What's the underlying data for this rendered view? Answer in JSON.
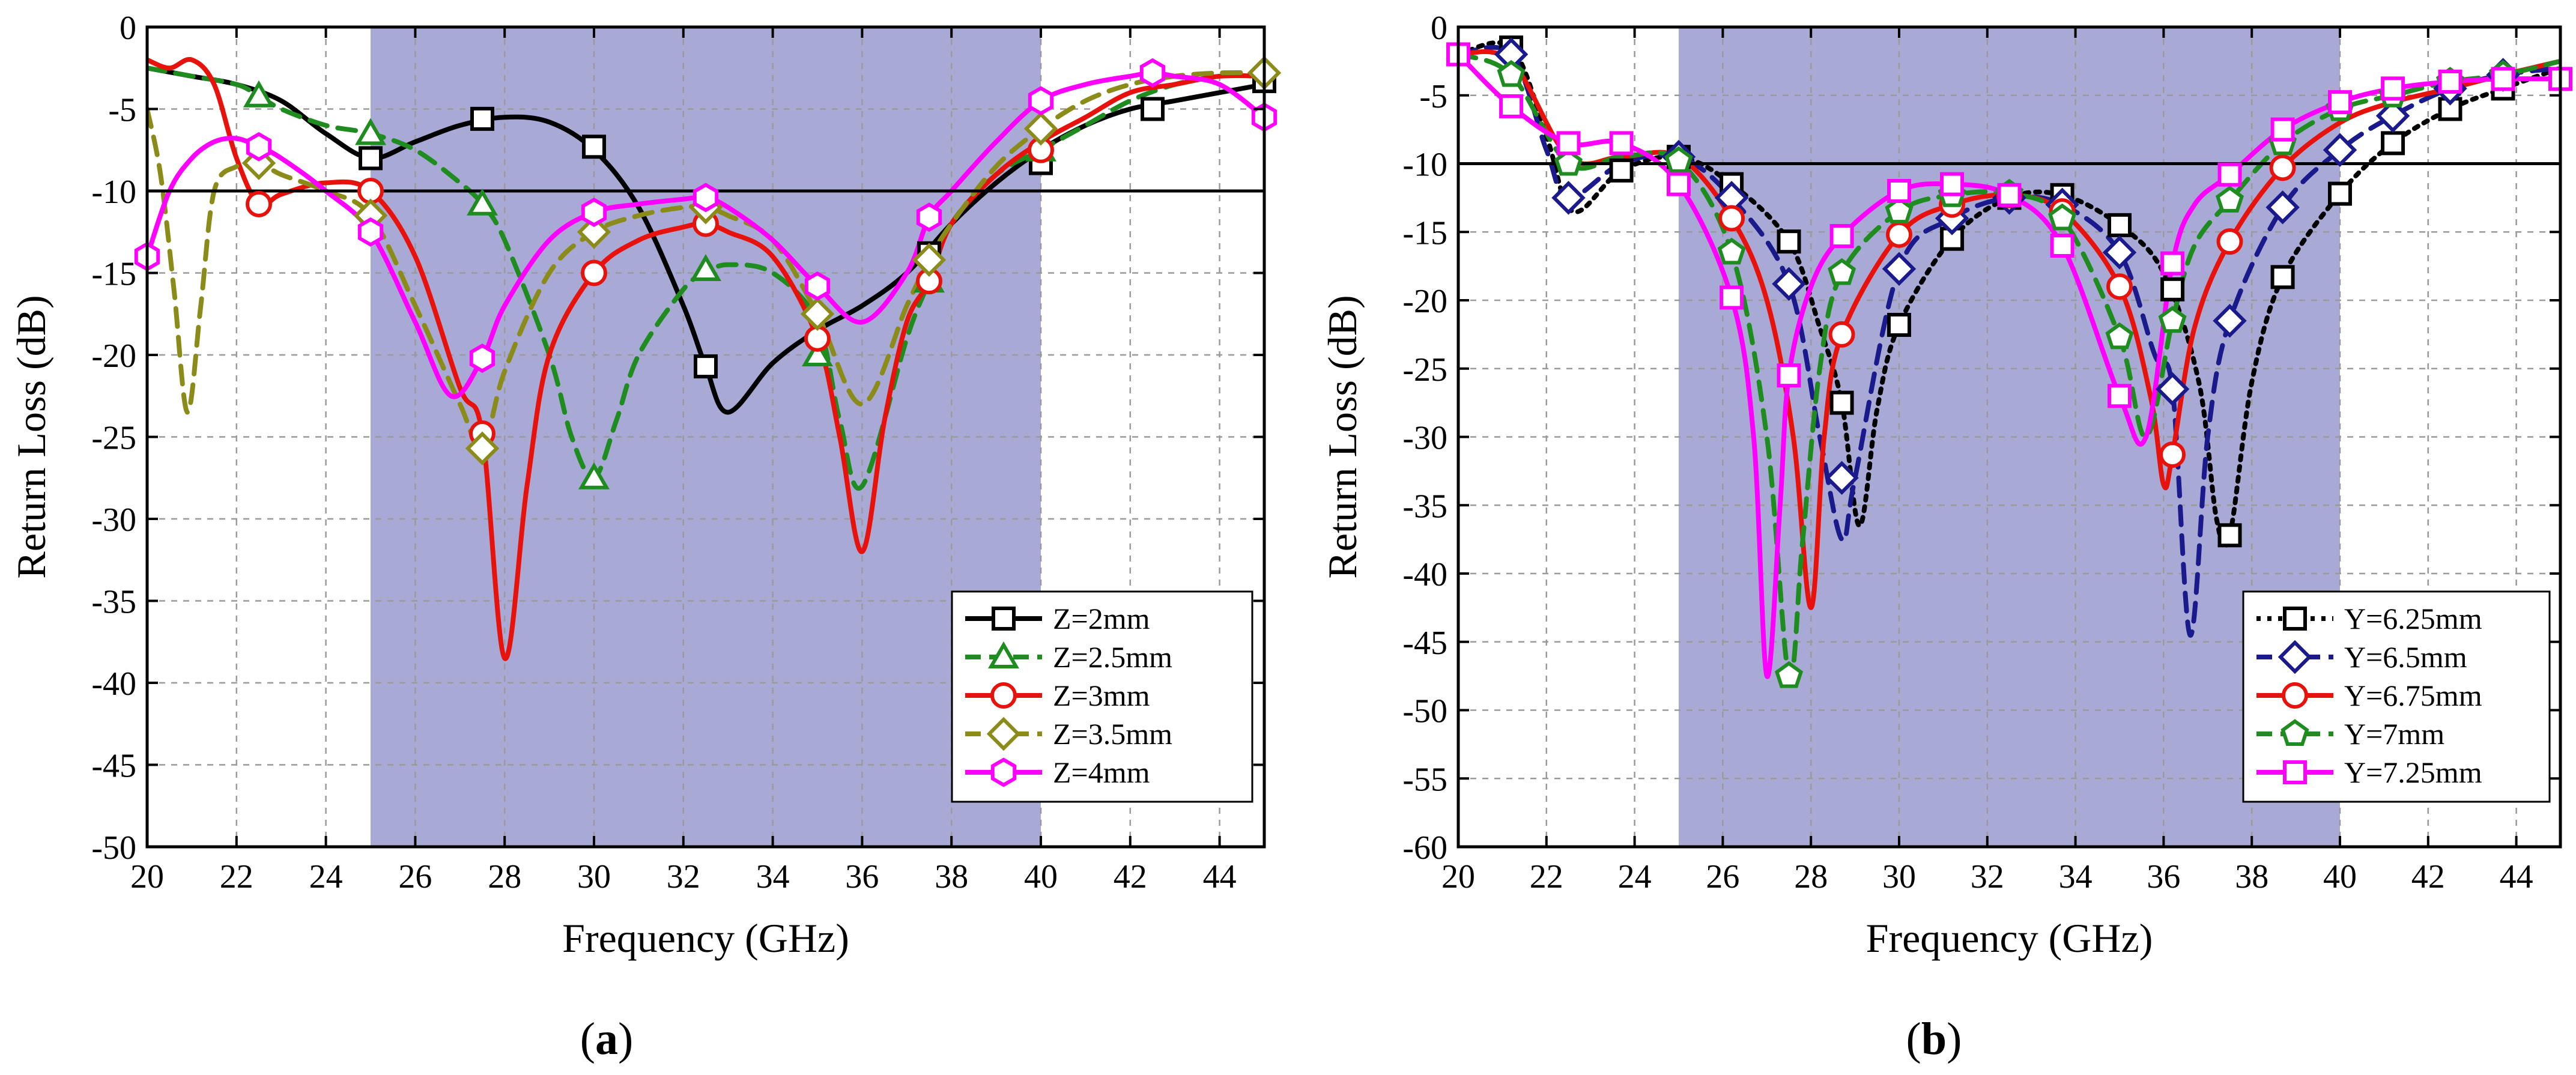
{
  "chart_data": [
    {
      "panel": "(a)",
      "panel_letter": "a",
      "type": "line",
      "xlabel": "Frequency (GHz)",
      "ylabel": "Return Loss (dB)",
      "xlim": [
        20,
        45
      ],
      "ylim": [
        -50,
        0
      ],
      "xticks": [
        20,
        22,
        24,
        26,
        28,
        30,
        32,
        34,
        36,
        38,
        40,
        42,
        44
      ],
      "yticks": [
        0,
        -5,
        -10,
        -15,
        -20,
        -25,
        -30,
        -35,
        -40,
        -45,
        -50
      ],
      "grid": true,
      "legend_position": "bottom-right",
      "shaded_band": {
        "x": [
          25,
          40
        ],
        "color": "#a9a9d6"
      },
      "reference_line": {
        "y": -10
      },
      "series": [
        {
          "name": "Z=2mm",
          "color": "#000000",
          "dash": "solid",
          "marker": "square",
          "x": [
            20,
            21,
            22,
            23,
            24,
            25,
            26,
            27,
            28,
            29,
            30,
            31,
            32,
            32.5,
            33,
            34,
            35,
            36,
            37,
            38,
            39,
            40,
            41,
            42,
            43,
            44,
            45
          ],
          "y": [
            -2.5,
            -3,
            -3.5,
            -4.5,
            -6.5,
            -8,
            -7,
            -6,
            -5.5,
            -5.8,
            -7.5,
            -11,
            -17,
            -20.7,
            -23.5,
            -20.5,
            -18.5,
            -17,
            -15,
            -12,
            -9.5,
            -7.5,
            -6,
            -5,
            -4.5,
            -4,
            -3.5
          ],
          "marker_x": [
            25,
            27.5,
            30,
            32.5,
            37.5,
            40,
            42.5,
            45
          ],
          "marker_y": [
            -8,
            -5.6,
            -7.3,
            -20.7,
            -13.8,
            -8.3,
            -5,
            -3.3
          ]
        },
        {
          "name": "Z=2.5mm",
          "color": "#1e8c1e",
          "dash": "dashed",
          "marker": "triangle",
          "x": [
            20,
            21,
            22,
            22.5,
            23,
            24,
            25,
            26,
            27,
            27.5,
            28,
            29,
            29.5,
            30,
            30.5,
            31,
            32,
            32.5,
            33,
            34,
            35,
            35.5,
            36,
            37,
            37.5,
            38,
            39,
            40,
            41,
            42,
            43,
            44,
            45
          ],
          "y": [
            -2.5,
            -3,
            -3.5,
            -4.2,
            -5,
            -6,
            -6.5,
            -7.5,
            -9.5,
            -10.8,
            -13,
            -20,
            -25,
            -27.5,
            -24,
            -20,
            -16,
            -15,
            -14.5,
            -15,
            -18,
            -24,
            -28,
            -19,
            -15.5,
            -12,
            -9,
            -7.5,
            -6,
            -4.5,
            -3.5,
            -3,
            -2.8
          ],
          "marker_x": [
            22.5,
            25,
            27.5,
            30,
            32.5,
            35,
            37.5,
            40
          ],
          "marker_y": [
            -4.2,
            -6.5,
            -10.8,
            -27.5,
            -14.8,
            -20,
            -15.5,
            -7.5
          ]
        },
        {
          "name": "Z=3mm",
          "color": "#e8120c",
          "dash": "solid",
          "marker": "circle",
          "x": [
            20,
            20.5,
            21,
            21.5,
            22,
            22.5,
            23,
            24,
            25,
            26,
            27,
            27.5,
            28,
            28.5,
            29,
            30,
            31,
            32,
            32.5,
            33,
            34,
            35,
            35.5,
            36,
            36.5,
            37,
            37.5,
            38,
            39,
            40,
            41,
            42,
            43,
            44,
            45
          ],
          "y": [
            -2,
            -2.5,
            -2,
            -3.5,
            -8,
            -10.8,
            -10.2,
            -9.5,
            -10,
            -14,
            -22,
            -24.8,
            -38.5,
            -28,
            -20,
            -15,
            -13,
            -12.2,
            -12,
            -12.5,
            -14,
            -19,
            -25,
            -32,
            -24,
            -18,
            -15.5,
            -12,
            -9,
            -7,
            -5.5,
            -4,
            -3.5,
            -3,
            -3
          ],
          "marker_x": [
            22.5,
            25,
            27.5,
            30,
            32.5,
            35,
            37.5,
            40
          ],
          "marker_y": [
            -10.8,
            -10,
            -24.8,
            -15,
            -12,
            -19,
            -15.5,
            -7.5
          ]
        },
        {
          "name": "Z=3.5mm",
          "color": "#8b8b1a",
          "dash": "dashed",
          "marker": "diamond",
          "x": [
            20,
            20.3,
            20.6,
            20.9,
            21.2,
            21.5,
            22,
            22.5,
            23,
            24,
            25,
            26,
            27,
            27.5,
            28,
            29,
            30,
            31,
            32,
            32.5,
            33,
            34,
            35,
            36,
            37,
            37.5,
            38,
            39,
            40,
            41,
            42,
            43,
            44,
            45
          ],
          "y": [
            -5,
            -9,
            -16,
            -23.5,
            -17,
            -10,
            -8.5,
            -8.3,
            -9,
            -10,
            -11.5,
            -17,
            -23,
            -25.7,
            -21,
            -15,
            -12.5,
            -11.5,
            -11,
            -11,
            -11.5,
            -13,
            -17.5,
            -23,
            -17,
            -14.2,
            -12,
            -8.5,
            -6.2,
            -4.5,
            -3.5,
            -3,
            -2.8,
            -2.8
          ],
          "marker_x": [
            22.5,
            25,
            27.5,
            30,
            32.5,
            35,
            37.5,
            40,
            45
          ],
          "marker_y": [
            -8.3,
            -11.5,
            -25.7,
            -12.5,
            -11,
            -17.5,
            -14.2,
            -6.2,
            -2.8
          ]
        },
        {
          "name": "Z=4mm",
          "color": "#ff00ff",
          "dash": "solid",
          "marker": "hexagon",
          "x": [
            20,
            20.5,
            21,
            21.5,
            22,
            22.5,
            23,
            24,
            25,
            26,
            26.8,
            27.5,
            28,
            29,
            30,
            31,
            32,
            32.5,
            33,
            34,
            35,
            36,
            37,
            37.5,
            38,
            39,
            40,
            41,
            42,
            42.5,
            43,
            44,
            45
          ],
          "y": [
            -14,
            -10,
            -8,
            -7,
            -6.8,
            -7.3,
            -8,
            -10,
            -12.5,
            -18,
            -22.5,
            -20.2,
            -17,
            -13,
            -11.3,
            -10.8,
            -10.5,
            -10.4,
            -11,
            -13,
            -15.8,
            -18,
            -15,
            -11.6,
            -10,
            -7,
            -4.5,
            -3.5,
            -3,
            -2.8,
            -3,
            -3.5,
            -5.5
          ],
          "marker_x": [
            20,
            22.5,
            25,
            27.5,
            30,
            32.5,
            35,
            37.5,
            40,
            42.5,
            45
          ],
          "marker_y": [
            -14,
            -7.3,
            -12.5,
            -20.2,
            -11.3,
            -10.4,
            -15.8,
            -11.6,
            -4.5,
            -2.8,
            -5.5
          ]
        }
      ]
    },
    {
      "panel": "(b)",
      "panel_letter": "b",
      "type": "line",
      "xlabel": "Frequency (GHz)",
      "ylabel": "Return Loss (dB)",
      "xlim": [
        20,
        45
      ],
      "ylim": [
        -60,
        0
      ],
      "xticks": [
        20,
        22,
        24,
        26,
        28,
        30,
        32,
        34,
        36,
        38,
        40,
        42,
        44
      ],
      "yticks": [
        0,
        -5,
        -10,
        -15,
        -20,
        -25,
        -30,
        -35,
        -40,
        -45,
        -50,
        -55,
        -60
      ],
      "grid": true,
      "legend_position": "bottom-right",
      "shaded_band": {
        "x": [
          25,
          40
        ],
        "color": "#a9a9d6"
      },
      "reference_line": {
        "y": -10
      },
      "series": [
        {
          "name": "Y=6.25mm",
          "color": "#000000",
          "dash": "dotted",
          "marker": "square",
          "x": [
            20,
            21.2,
            22,
            22.6,
            23.7,
            25,
            26.2,
            27.5,
            28.2,
            28.7,
            29.1,
            29.5,
            30,
            31.2,
            32.5,
            33.7,
            35,
            36,
            36.8,
            37.2,
            37.5,
            38,
            38.7,
            40,
            41.2,
            42.5,
            43.7,
            45
          ],
          "y": [
            -2,
            -1.5,
            -8,
            -13.5,
            -10.5,
            -9.5,
            -11.5,
            -15.7,
            -22,
            -27.5,
            -36.5,
            -28,
            -21.8,
            -15.5,
            -12.5,
            -12.3,
            -14.5,
            -18,
            -26,
            -36,
            -37.2,
            -26,
            -18.3,
            -12.2,
            -8.5,
            -6,
            -4.5,
            -3
          ],
          "marker_x": [
            21.2,
            23.7,
            25,
            26.2,
            27.5,
            28.7,
            30,
            31.2,
            32.5,
            33.7,
            35,
            36.2,
            37.5,
            38.7,
            40,
            41.2,
            42.5,
            43.7
          ],
          "marker_y": [
            -1.5,
            -10.5,
            -9.5,
            -11.5,
            -15.7,
            -27.5,
            -21.8,
            -15.5,
            -12.5,
            -12.3,
            -14.5,
            -19.2,
            -37.2,
            -18.3,
            -12.2,
            -8.5,
            -6,
            -4.5
          ]
        },
        {
          "name": "Y=6.5mm",
          "color": "#1a1a8c",
          "dash": "dashed",
          "marker": "diamond",
          "x": [
            20,
            21.2,
            22,
            22.5,
            23.7,
            25,
            26.2,
            27.5,
            28.2,
            28.7,
            29,
            30,
            31.2,
            32.5,
            33.7,
            35,
            35.8,
            36.2,
            36.6,
            37,
            37.5,
            38.7,
            40,
            41.2,
            42.5,
            43.7,
            45
          ],
          "y": [
            -2,
            -2,
            -9,
            -12.5,
            -10,
            -9.5,
            -12.5,
            -18.8,
            -30,
            -37.5,
            -33,
            -17.7,
            -14,
            -12.5,
            -13,
            -16.5,
            -24,
            -26.5,
            -44.5,
            -30,
            -21.5,
            -13.2,
            -9,
            -6.5,
            -4.5,
            -3.5,
            -3
          ],
          "marker_x": [
            21.2,
            22.5,
            25,
            26.2,
            27.5,
            28.7,
            30,
            31.2,
            32.5,
            33.7,
            35,
            36.2,
            37.5,
            38.7,
            40,
            41.2,
            42.5,
            43.7
          ],
          "marker_y": [
            -2,
            -12.5,
            -9.5,
            -12.5,
            -18.8,
            -33,
            -17.7,
            -14,
            -12.5,
            -13,
            -16.5,
            -26.5,
            -21.5,
            -13.2,
            -9,
            -6.5,
            -4.5,
            -3.5
          ]
        },
        {
          "name": "Y=6.75mm",
          "color": "#e8120c",
          "dash": "solid",
          "marker": "circle",
          "x": [
            20,
            21.2,
            22.5,
            23.7,
            25,
            26.2,
            27,
            27.6,
            28,
            28.3,
            28.7,
            30,
            31.2,
            32.5,
            33.7,
            35,
            35.7,
            36,
            36.2,
            36.7,
            37.5,
            38.7,
            40,
            41.2,
            42.5,
            43.7,
            45
          ],
          "y": [
            -2,
            -2.5,
            -9.5,
            -9.5,
            -9.5,
            -14,
            -20,
            -30,
            -42.5,
            -30,
            -22.5,
            -15.2,
            -13,
            -12.3,
            -13.5,
            -19,
            -27,
            -33.5,
            -31.3,
            -22,
            -15.7,
            -10.3,
            -7,
            -5.5,
            -4.5,
            -3.5,
            -2.5
          ],
          "marker_x": [
            26.2,
            28.7,
            30,
            31.2,
            32.5,
            33.7,
            35,
            36.2,
            37.5,
            38.7
          ],
          "marker_y": [
            -14,
            -22.5,
            -15.2,
            -13,
            -12.3,
            -13.5,
            -19,
            -31.3,
            -15.7,
            -10.3
          ]
        },
        {
          "name": "Y=7mm",
          "color": "#1e8c1e",
          "dash": "dashed",
          "marker": "pentagon",
          "x": [
            20,
            21.2,
            22.5,
            23.7,
            25,
            26.2,
            27,
            27.5,
            27.8,
            28.2,
            28.7,
            30,
            31.2,
            32.5,
            33.7,
            35,
            35.6,
            36.2,
            36.7,
            37.5,
            38.7,
            40,
            41.2,
            42.5,
            43.7,
            45
          ],
          "y": [
            -2,
            -3.5,
            -10,
            -9.5,
            -9.8,
            -16.5,
            -30,
            -47.5,
            -38,
            -25,
            -18,
            -13.5,
            -12.3,
            -12.2,
            -14,
            -22.7,
            -30,
            -21.5,
            -16,
            -12.7,
            -8.5,
            -6,
            -5,
            -4,
            -3.5,
            -2.5
          ],
          "marker_x": [
            21.2,
            22.5,
            25,
            26.2,
            27.5,
            28.7,
            30,
            31.2,
            32.5,
            33.7,
            35,
            36.2,
            37.5,
            38.7,
            40,
            41.2,
            42.5,
            43.7
          ],
          "marker_y": [
            -3.5,
            -10,
            -9.8,
            -16.5,
            -47.5,
            -18,
            -13.5,
            -12.3,
            -12.2,
            -14,
            -22.7,
            -21.5,
            -12.7,
            -8.5,
            -6,
            -5,
            -4,
            -3.5
          ]
        },
        {
          "name": "Y=7.25mm",
          "color": "#ff00ff",
          "dash": "solid",
          "marker": "square",
          "x": [
            20,
            21.2,
            22.5,
            23.7,
            25,
            26.2,
            26.7,
            27,
            27.3,
            27.5,
            28,
            28.7,
            30,
            31.2,
            32.5,
            33.7,
            35,
            35.6,
            36.2,
            36.7,
            37.5,
            38.7,
            40,
            41.2,
            42.5,
            43.7,
            45
          ],
          "y": [
            -2,
            -5.8,
            -8.5,
            -8.5,
            -11.5,
            -19.8,
            -30,
            -47.5,
            -35,
            -25.5,
            -19,
            -15.3,
            -12,
            -11.5,
            -12.3,
            -16,
            -27,
            -30,
            -17.3,
            -13,
            -10.8,
            -7.5,
            -5.5,
            -4.5,
            -4,
            -3.8,
            -3.8
          ],
          "marker_x": [
            20,
            21.2,
            22.5,
            23.7,
            25,
            26.2,
            27.5,
            28.7,
            30,
            31.2,
            32.5,
            33.7,
            35,
            36.2,
            37.5,
            38.7,
            40,
            41.2,
            42.5,
            43.7,
            45
          ],
          "marker_y": [
            -2,
            -5.8,
            -8.5,
            -8.5,
            -11.5,
            -19.8,
            -25.5,
            -15.3,
            -12,
            -11.5,
            -12.3,
            -16,
            -27,
            -17.3,
            -10.8,
            -7.5,
            -5.5,
            -4.5,
            -4,
            -3.8,
            -3.8
          ]
        }
      ]
    }
  ]
}
